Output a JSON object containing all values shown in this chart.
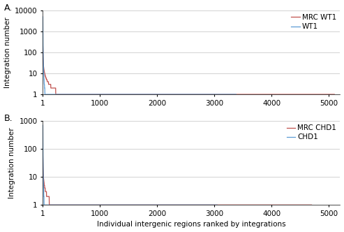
{
  "panel_A": {
    "label": "A.",
    "ylim": [
      1,
      10000
    ],
    "yticks": [
      1,
      10,
      100,
      1000,
      10000
    ],
    "yticklabels": [
      "1",
      "10",
      "100",
      "1000",
      "10000"
    ],
    "xlim": [
      1,
      5200
    ],
    "xticks": [
      1,
      1000,
      2000,
      3000,
      4000,
      5000
    ],
    "xticklabels": [
      "1",
      "1000",
      "2000",
      "3000",
      "4000",
      "5000"
    ],
    "legend": [
      "WT1",
      "MRC WT1"
    ],
    "wt1_color": "#5B9BD5",
    "mrc_wt1_color": "#C0504D",
    "wt1_start": 5000,
    "wt1_n": 3380,
    "wt1_alpha": 2.2,
    "mrc_start": 200,
    "mrc_n": 5100,
    "mrc_alpha": 0.85
  },
  "panel_B": {
    "label": "B.",
    "ylim": [
      1,
      1000
    ],
    "yticks": [
      1,
      10,
      100,
      1000
    ],
    "yticklabels": [
      "1",
      "10",
      "100",
      "1000"
    ],
    "xlim": [
      1,
      5200
    ],
    "xticks": [
      1,
      1000,
      2000,
      3000,
      4000,
      5000
    ],
    "xticklabels": [
      "1",
      "1000",
      "2000",
      "3000",
      "4000",
      "5000"
    ],
    "legend": [
      "CHD1",
      "MRC CHD1"
    ],
    "chd1_color": "#5B9BD5",
    "mrc_chd1_color": "#C0504D",
    "chd1_start": 700,
    "chd1_n": 3050,
    "chd1_alpha": 1.9,
    "mrc_start": 60,
    "mrc_n": 4700,
    "mrc_alpha": 0.72
  },
  "xlabel": "Individual intergenic regions ranked by integrations",
  "ylabel": "Integration number",
  "bg_color": "#FFFFFF",
  "grid_color": "#C0C0C0",
  "font_size": 7.5,
  "label_font_size": 9
}
